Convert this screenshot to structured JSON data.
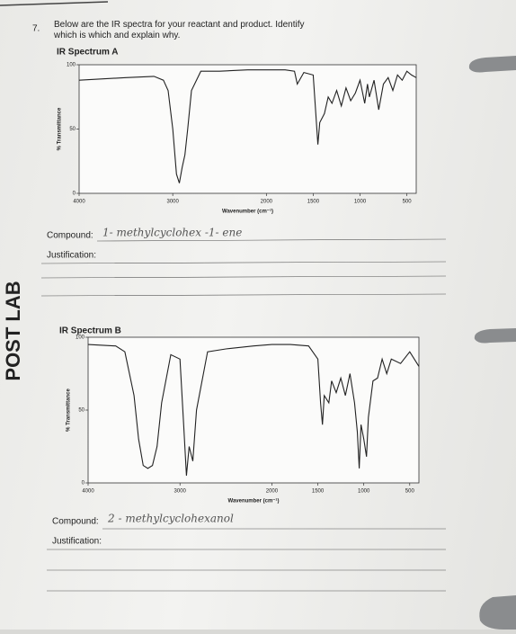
{
  "side_label": "POST LAB",
  "question": {
    "number": "7.",
    "text": "Below are the IR spectra for your reactant and product. Identify which is which and explain why."
  },
  "chart_data": [
    {
      "type": "line",
      "title": "IR Spectrum A",
      "x_label": "Wavenumber (cm⁻¹)",
      "y_label": "% Transmittance",
      "x": [
        4000,
        3500,
        3200,
        3100,
        3050,
        3000,
        2960,
        2930,
        2900,
        2870,
        2840,
        2800,
        2700,
        2500,
        2200,
        2000,
        1800,
        1700,
        1670,
        1600,
        1500,
        1470,
        1450,
        1430,
        1380,
        1340,
        1300,
        1250,
        1200,
        1150,
        1100,
        1050,
        1000,
        950,
        920,
        900,
        850,
        800,
        750,
        700,
        650,
        600,
        550,
        500,
        450,
        400
      ],
      "series": [
        {
          "color": "#222222",
          "values": [
            88,
            90,
            91,
            88,
            80,
            50,
            15,
            8,
            20,
            30,
            50,
            80,
            95,
            95,
            96,
            96,
            96,
            95,
            85,
            94,
            92,
            60,
            38,
            55,
            62,
            75,
            70,
            80,
            68,
            82,
            72,
            78,
            88,
            70,
            85,
            75,
            88,
            65,
            85,
            90,
            80,
            92,
            88,
            95,
            92,
            90
          ]
        }
      ],
      "xlim": [
        4000,
        400
      ],
      "ylim": [
        0,
        100
      ],
      "xticks": [
        4000,
        3000,
        2000,
        1500,
        1000,
        500
      ],
      "yticks": [
        0,
        50,
        100
      ]
    },
    {
      "type": "line",
      "title": "IR Spectrum B",
      "x_label": "Wavenumber (cm⁻¹)",
      "y_label": "% Transmittance",
      "x": [
        4000,
        3700,
        3600,
        3500,
        3450,
        3400,
        3350,
        3300,
        3250,
        3200,
        3100,
        3000,
        2960,
        2930,
        2900,
        2860,
        2820,
        2700,
        2500,
        2200,
        2000,
        1800,
        1600,
        1500,
        1470,
        1450,
        1430,
        1380,
        1350,
        1300,
        1250,
        1200,
        1150,
        1100,
        1070,
        1050,
        1030,
        1000,
        970,
        950,
        900,
        850,
        800,
        750,
        700,
        600,
        500,
        450,
        400
      ],
      "series": [
        {
          "color": "#222222",
          "values": [
            95,
            94,
            90,
            60,
            30,
            12,
            10,
            12,
            25,
            55,
            88,
            85,
            40,
            5,
            25,
            15,
            50,
            90,
            92,
            94,
            95,
            95,
            94,
            85,
            55,
            40,
            60,
            55,
            70,
            62,
            72,
            60,
            75,
            55,
            35,
            10,
            40,
            30,
            18,
            45,
            70,
            72,
            85,
            75,
            85,
            82,
            90,
            85,
            80
          ]
        }
      ],
      "xlim": [
        4000,
        400
      ],
      "ylim": [
        0,
        100
      ],
      "xticks": [
        4000,
        3000,
        2000,
        1500,
        1000,
        500
      ],
      "yticks": [
        0,
        50,
        100
      ]
    }
  ],
  "answers": [
    {
      "compound_label": "Compound:",
      "compound": "1- methylcyclohex -1- ene",
      "justification_label": "Justification:"
    },
    {
      "compound_label": "Compound:",
      "compound": "2 - methylcyclohexanol",
      "justification_label": "Justification:"
    }
  ]
}
